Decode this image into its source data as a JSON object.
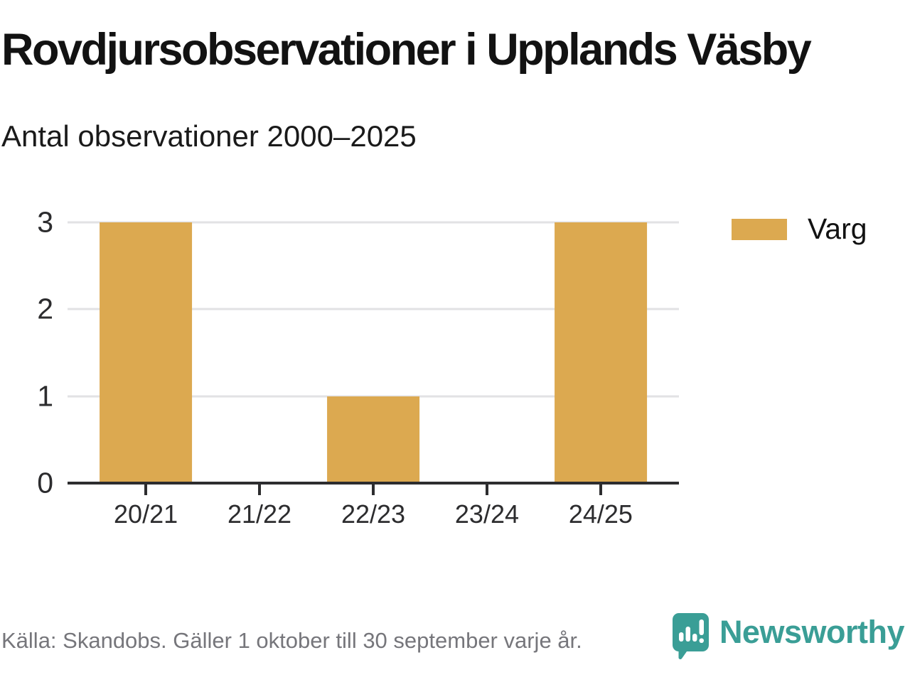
{
  "header": {
    "title": "Rovdjursobservationer i Upplands Väsby",
    "subtitle": "Antal observationer 2000–2025"
  },
  "legend": {
    "items": [
      {
        "label": "Varg",
        "color": "#dca950"
      }
    ]
  },
  "footer": {
    "source": "Källa: Skandobs. Gäller 1 oktober till 30 september varje år.",
    "brand": "Newsworthy"
  },
  "colors": {
    "bar": "#dca950",
    "brand_teal": "#3a9e96",
    "axis": "#2d2d2f",
    "gridline": "#e2e2e4",
    "source_text": "#76767b"
  },
  "chart_data": {
    "type": "bar",
    "title": "Rovdjursobservationer i Upplands Väsby",
    "subtitle": "Antal observationer 2000–2025",
    "categories": [
      "20/21",
      "21/22",
      "22/23",
      "23/24",
      "24/25"
    ],
    "series": [
      {
        "name": "Varg",
        "values": [
          3,
          0,
          1,
          0,
          3
        ]
      }
    ],
    "xlabel": "",
    "ylabel": "",
    "ylim": [
      0,
      3
    ],
    "yticks": [
      0,
      1,
      2,
      3
    ],
    "grid": "horizontal",
    "legend_position": "right-top",
    "bar_color": "#dca950"
  }
}
